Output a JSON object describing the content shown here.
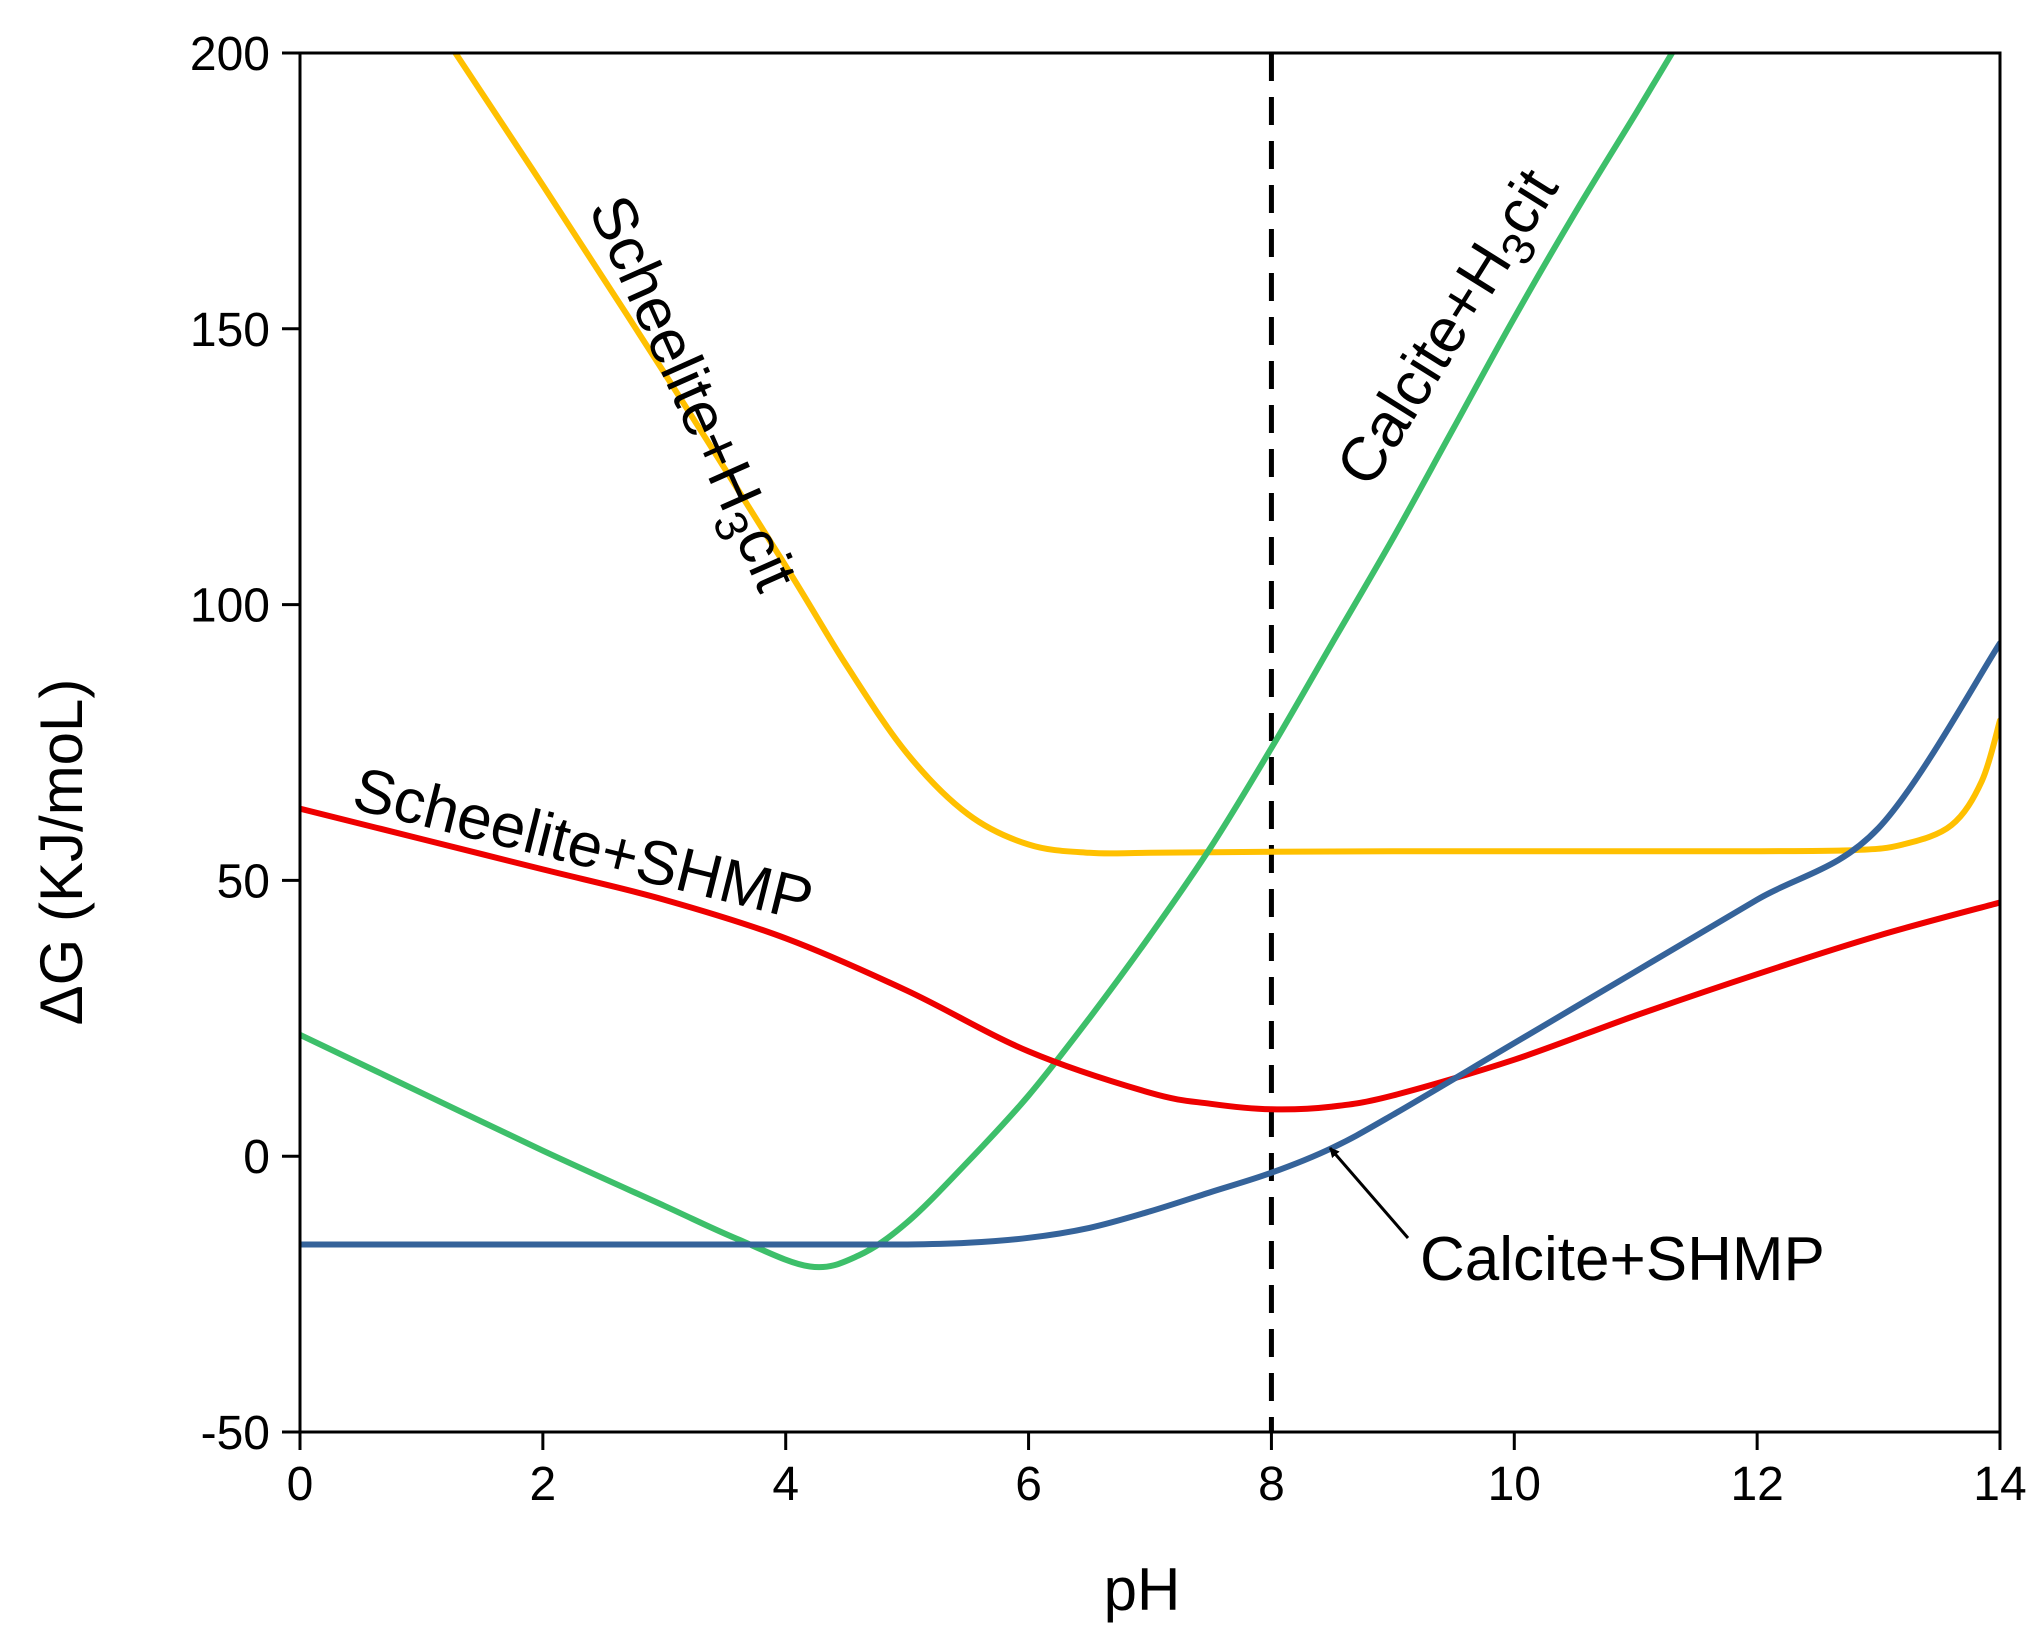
{
  "chart_data": {
    "type": "line",
    "xlabel": "pH",
    "ylabel": "ΔG (KJ/moL)",
    "xlim": [
      0,
      14
    ],
    "ylim": [
      -50,
      200
    ],
    "xticks": [
      0,
      2,
      4,
      6,
      8,
      10,
      12,
      14
    ],
    "yticks": [
      -50,
      0,
      50,
      100,
      150,
      200
    ],
    "grid": false,
    "reference_line": {
      "x": 8,
      "style": "dashed",
      "color": "#000000"
    },
    "series": [
      {
        "name": "Scheelite+H3cit",
        "color": "#FFC000",
        "points": [
          [
            1.28,
            200
          ],
          [
            2,
            176
          ],
          [
            3,
            142
          ],
          [
            4,
            107
          ],
          [
            4.5,
            89
          ],
          [
            5,
            73
          ],
          [
            5.5,
            62
          ],
          [
            6,
            56.5
          ],
          [
            6.5,
            55
          ],
          [
            7,
            55
          ],
          [
            8,
            55.2
          ],
          [
            9,
            55.3
          ],
          [
            10,
            55.3
          ],
          [
            11,
            55.3
          ],
          [
            12,
            55.3
          ],
          [
            12.8,
            55.5
          ],
          [
            13.2,
            56.5
          ],
          [
            13.6,
            60
          ],
          [
            13.85,
            68
          ],
          [
            14,
            79
          ]
        ]
      },
      {
        "name": "Calcite+H3cit",
        "color": "#3DBF6A",
        "points": [
          [
            0,
            22
          ],
          [
            1,
            11.5
          ],
          [
            2,
            1
          ],
          [
            3,
            -9
          ],
          [
            3.6,
            -15
          ],
          [
            4.2,
            -20
          ],
          [
            4.6,
            -18
          ],
          [
            5,
            -12
          ],
          [
            5.5,
            -1
          ],
          [
            6,
            11
          ],
          [
            6.5,
            25
          ],
          [
            7,
            40
          ],
          [
            7.5,
            56
          ],
          [
            8,
            74
          ],
          [
            8.5,
            93
          ],
          [
            9,
            112
          ],
          [
            9.5,
            132
          ],
          [
            10,
            152
          ],
          [
            10.5,
            171
          ],
          [
            11,
            189
          ],
          [
            11.3,
            200
          ]
        ]
      },
      {
        "name": "Scheelite+SHMP",
        "color": "#EE0000",
        "points": [
          [
            0,
            63
          ],
          [
            1,
            57.5
          ],
          [
            2,
            52
          ],
          [
            3,
            46.5
          ],
          [
            4,
            39.5
          ],
          [
            5,
            30
          ],
          [
            6,
            19
          ],
          [
            7,
            11.5
          ],
          [
            7.5,
            9.5
          ],
          [
            8,
            8.5
          ],
          [
            8.5,
            9
          ],
          [
            9,
            11
          ],
          [
            10,
            17.5
          ],
          [
            11,
            25.5
          ],
          [
            12,
            33
          ],
          [
            13,
            40
          ],
          [
            14,
            46
          ]
        ]
      },
      {
        "name": "Calcite+SHMP",
        "color": "#35639A",
        "points": [
          [
            0,
            -16
          ],
          [
            2,
            -16
          ],
          [
            4,
            -16
          ],
          [
            5,
            -16
          ],
          [
            5.5,
            -15.7
          ],
          [
            6,
            -14.8
          ],
          [
            6.5,
            -13
          ],
          [
            7,
            -10
          ],
          [
            7.5,
            -6.5
          ],
          [
            8,
            -3
          ],
          [
            8.5,
            1.5
          ],
          [
            9,
            7.5
          ],
          [
            10,
            20.5
          ],
          [
            11,
            33.5
          ],
          [
            12,
            46.5
          ],
          [
            13,
            59.5
          ],
          [
            14,
            93
          ]
        ]
      }
    ],
    "annotations": [
      {
        "text": "Scheelite+SHMP",
        "series": "Scheelite+SHMP"
      },
      {
        "text": "Calcite+SHMP",
        "series": "Calcite+SHMP",
        "arrow": true
      },
      {
        "text_main": "Scheelite+H",
        "text_sub": "3",
        "text_end": "cit",
        "series": "Scheelite+H3cit"
      },
      {
        "text_main": "Calcite+H",
        "text_sub": "3",
        "text_end": "cit",
        "series": "Calcite+H3cit"
      }
    ]
  }
}
